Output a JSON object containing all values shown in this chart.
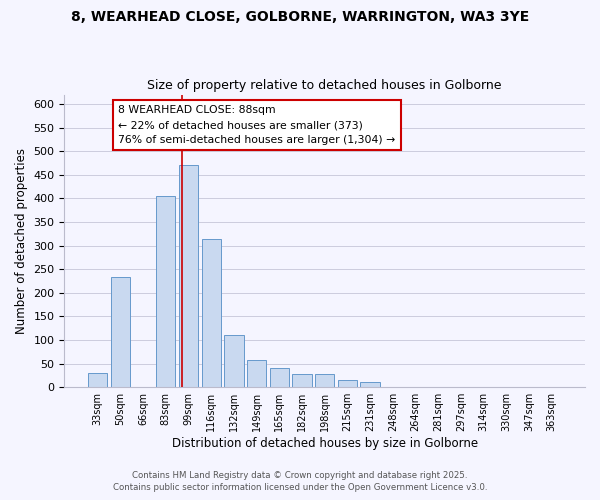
{
  "title": "8, WEARHEAD CLOSE, GOLBORNE, WARRINGTON, WA3 3YE",
  "subtitle": "Size of property relative to detached houses in Golborne",
  "xlabel": "Distribution of detached houses by size in Golborne",
  "ylabel": "Number of detached properties",
  "bar_labels": [
    "33sqm",
    "50sqm",
    "66sqm",
    "83sqm",
    "99sqm",
    "116sqm",
    "132sqm",
    "149sqm",
    "165sqm",
    "182sqm",
    "198sqm",
    "215sqm",
    "231sqm",
    "248sqm",
    "264sqm",
    "281sqm",
    "297sqm",
    "314sqm",
    "330sqm",
    "347sqm",
    "363sqm"
  ],
  "bar_values": [
    30,
    233,
    0,
    406,
    471,
    313,
    110,
    57,
    40,
    27,
    27,
    15,
    10,
    0,
    0,
    0,
    0,
    0,
    0,
    0,
    0
  ],
  "bar_color": "#c9d9f0",
  "bar_edge_color": "#6699cc",
  "vline_color": "#cc0000",
  "annotation_title": "8 WEARHEAD CLOSE: 88sqm",
  "annotation_line1": "← 22% of detached houses are smaller (373)",
  "annotation_line2": "76% of semi-detached houses are larger (1,304) →",
  "ylim": [
    0,
    620
  ],
  "yticks": [
    0,
    50,
    100,
    150,
    200,
    250,
    300,
    350,
    400,
    450,
    500,
    550,
    600
  ],
  "footer1": "Contains HM Land Registry data © Crown copyright and database right 2025.",
  "footer2": "Contains public sector information licensed under the Open Government Licence v3.0.",
  "bg_color": "#f5f5ff",
  "grid_color": "#ccccdd",
  "vline_pos": 3.72
}
